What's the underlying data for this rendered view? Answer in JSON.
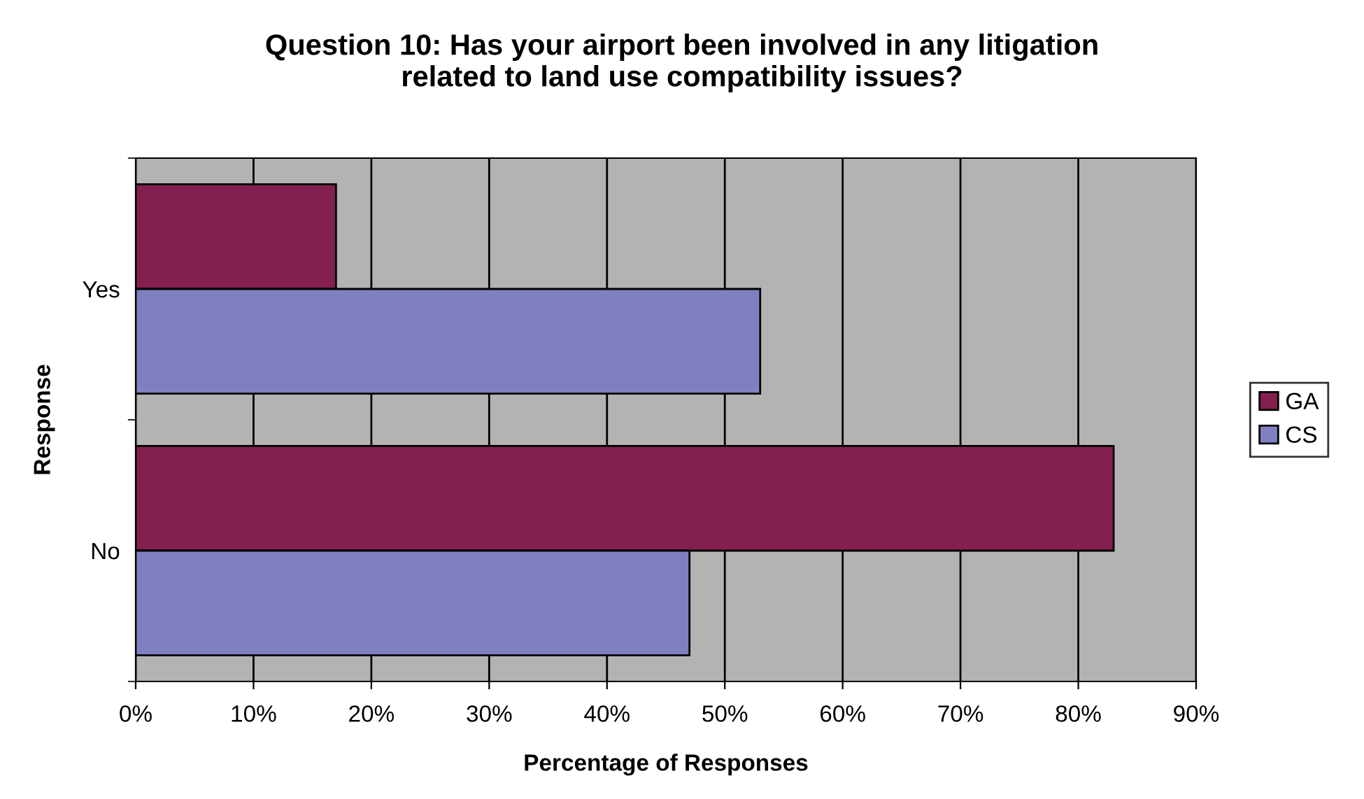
{
  "chart_data": {
    "type": "bar",
    "orientation": "horizontal",
    "title": "Question 10: Has your airport been involved in any litigation\nrelated to land use compatibility issues?",
    "xlabel": "Percentage of Responses",
    "ylabel": "Response",
    "categories": [
      "Yes",
      "No"
    ],
    "series": [
      {
        "name": "GA",
        "color": "#832050",
        "values": [
          17,
          83
        ]
      },
      {
        "name": "CS",
        "color": "#8080c0",
        "values": [
          53,
          47
        ]
      }
    ],
    "xlim": [
      0,
      90
    ],
    "xticks": [
      {
        "value": 0,
        "label": "0%"
      },
      {
        "value": 10,
        "label": "10%"
      },
      {
        "value": 20,
        "label": "20%"
      },
      {
        "value": 30,
        "label": "30%"
      },
      {
        "value": 40,
        "label": "40%"
      },
      {
        "value": 50,
        "label": "50%"
      },
      {
        "value": 60,
        "label": "60%"
      },
      {
        "value": 70,
        "label": "70%"
      },
      {
        "value": 80,
        "label": "80%"
      },
      {
        "value": 90,
        "label": "90%"
      }
    ],
    "grid": "x",
    "legend": "right"
  }
}
